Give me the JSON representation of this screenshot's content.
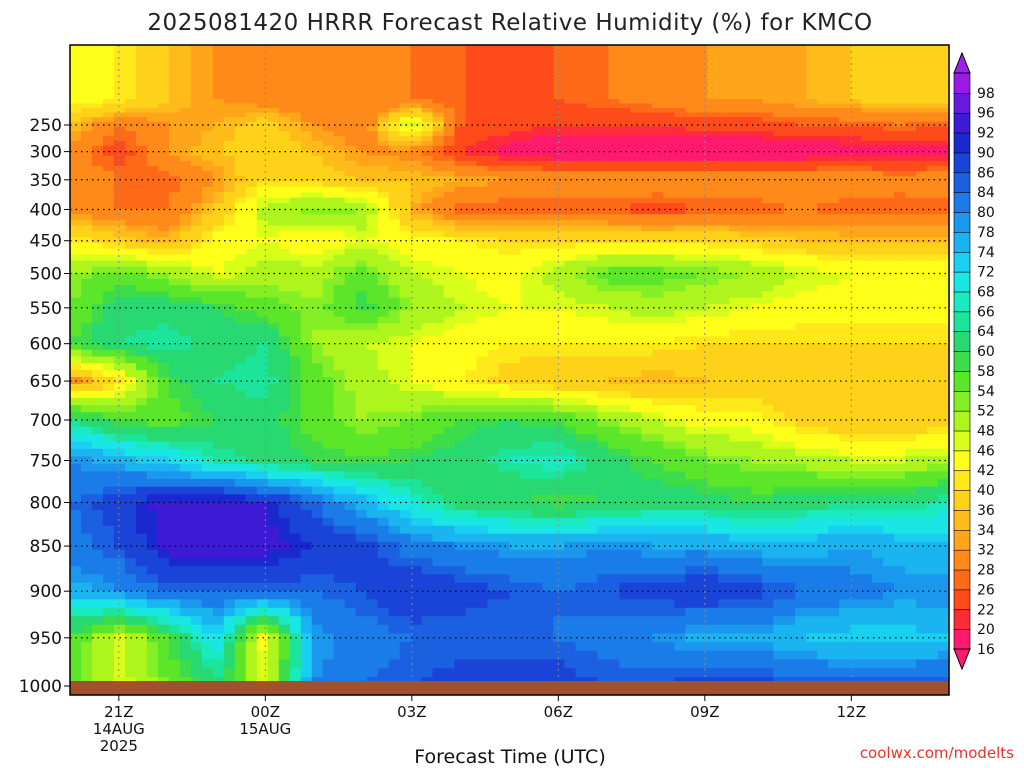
{
  "chart_data": {
    "type": "heatmap",
    "title": "2025081420 HRRR Forecast Relative Humidity (%) for KMCO",
    "xlabel": "Forecast Time (UTC)",
    "ylabel": "",
    "credit": "coolwx.com/modelts",
    "x_ticks": [
      {
        "hour": 0,
        "label": "21Z",
        "date": "14AUG",
        "year": "2025"
      },
      {
        "hour": 3,
        "label": "00Z",
        "date": "15AUG",
        "year": ""
      },
      {
        "hour": 6,
        "label": "03Z",
        "date": "",
        "year": ""
      },
      {
        "hour": 9,
        "label": "06Z",
        "date": "",
        "year": ""
      },
      {
        "hour": 12,
        "label": "09Z",
        "date": "",
        "year": ""
      },
      {
        "hour": 15,
        "label": "12Z",
        "date": "",
        "year": ""
      }
    ],
    "xlim": [
      -1,
      17
    ],
    "y_ticks": [
      250,
      300,
      350,
      400,
      450,
      500,
      550,
      600,
      650,
      700,
      750,
      800,
      850,
      900,
      950,
      1000
    ],
    "y_axis_reversed": true,
    "grid": true,
    "colorbar_levels": [
      16,
      20,
      22,
      26,
      28,
      32,
      34,
      36,
      40,
      42,
      46,
      48,
      52,
      54,
      58,
      60,
      64,
      66,
      68,
      72,
      74,
      78,
      80,
      84,
      86,
      90,
      92,
      96,
      98
    ],
    "colorbar_colors": [
      "#ff1a6e",
      "#ff2a3a",
      "#ff4a1a",
      "#ff6a18",
      "#ff8a1a",
      "#ffa51a",
      "#ffbb1a",
      "#ffd21a",
      "#ffe81a",
      "#ffff1a",
      "#d8ff1a",
      "#aef51e",
      "#84ef24",
      "#5ce62a",
      "#3cdc4a",
      "#28d870",
      "#1ce49a",
      "#1aeac0",
      "#1ae6e6",
      "#1ad0f2",
      "#1ab4f0",
      "#1a98ee",
      "#1a7ce8",
      "#1a60e0",
      "#1a44d8",
      "#1a28d0",
      "#3c1ad6",
      "#6a1ae0",
      "#9a1ae8"
    ],
    "y_levels": [
      200,
      250,
      300,
      350,
      400,
      450,
      500,
      550,
      600,
      650,
      700,
      750,
      800,
      850,
      900,
      950,
      1000
    ],
    "x_hours": [
      -1,
      0,
      1,
      2,
      3,
      4,
      5,
      6,
      7,
      8,
      9,
      10,
      11,
      12,
      13,
      14,
      15,
      16,
      17
    ],
    "values": [
      [
        44,
        42,
        36,
        32,
        30,
        28,
        28,
        28,
        26,
        24,
        26,
        28,
        30,
        32,
        32,
        34,
        36,
        38,
        38
      ],
      [
        36,
        28,
        32,
        34,
        38,
        32,
        28,
        50,
        26,
        24,
        22,
        22,
        22,
        24,
        24,
        26,
        26,
        28,
        26
      ],
      [
        30,
        24,
        32,
        36,
        38,
        36,
        32,
        30,
        22,
        18,
        16,
        16,
        16,
        16,
        16,
        16,
        18,
        18,
        18
      ],
      [
        32,
        28,
        26,
        32,
        40,
        38,
        36,
        36,
        34,
        32,
        32,
        32,
        32,
        32,
        32,
        32,
        32,
        30,
        32
      ],
      [
        30,
        28,
        28,
        36,
        50,
        54,
        52,
        34,
        26,
        26,
        26,
        26,
        24,
        26,
        26,
        28,
        26,
        26,
        26
      ],
      [
        42,
        38,
        34,
        44,
        46,
        42,
        46,
        44,
        42,
        40,
        40,
        40,
        40,
        40,
        38,
        36,
        36,
        36,
        36
      ],
      [
        52,
        56,
        52,
        46,
        50,
        50,
        56,
        48,
        46,
        44,
        50,
        56,
        56,
        54,
        52,
        48,
        46,
        46,
        46
      ],
      [
        54,
        62,
        62,
        60,
        56,
        52,
        60,
        52,
        48,
        46,
        46,
        48,
        50,
        48,
        46,
        44,
        44,
        44,
        44
      ],
      [
        58,
        64,
        66,
        62,
        64,
        52,
        48,
        46,
        44,
        42,
        42,
        42,
        42,
        40,
        40,
        40,
        40,
        40,
        40
      ],
      [
        30,
        40,
        58,
        64,
        66,
        56,
        50,
        46,
        42,
        38,
        36,
        36,
        34,
        36,
        36,
        36,
        36,
        36,
        36
      ],
      [
        64,
        58,
        56,
        60,
        62,
        56,
        52,
        54,
        58,
        60,
        58,
        52,
        48,
        44,
        44,
        38,
        36,
        36,
        38
      ],
      [
        80,
        76,
        72,
        66,
        62,
        60,
        58,
        60,
        62,
        66,
        68,
        62,
        58,
        54,
        52,
        50,
        48,
        48,
        50
      ],
      [
        84,
        88,
        94,
        94,
        92,
        84,
        76,
        68,
        62,
        60,
        58,
        60,
        62,
        62,
        60,
        62,
        64,
        64,
        66
      ],
      [
        82,
        86,
        94,
        96,
        94,
        90,
        88,
        82,
        80,
        78,
        78,
        80,
        78,
        78,
        76,
        76,
        78,
        76,
        74
      ],
      [
        76,
        80,
        84,
        84,
        84,
        84,
        86,
        90,
        88,
        86,
        84,
        86,
        88,
        90,
        88,
        84,
        82,
        80,
        80
      ],
      [
        58,
        46,
        58,
        72,
        44,
        78,
        82,
        84,
        84,
        84,
        84,
        82,
        80,
        76,
        78,
        74,
        72,
        72,
        74
      ],
      [
        58,
        46,
        54,
        62,
        46,
        80,
        84,
        86,
        88,
        88,
        88,
        86,
        86,
        88,
        88,
        86,
        86,
        86,
        86
      ]
    ]
  }
}
